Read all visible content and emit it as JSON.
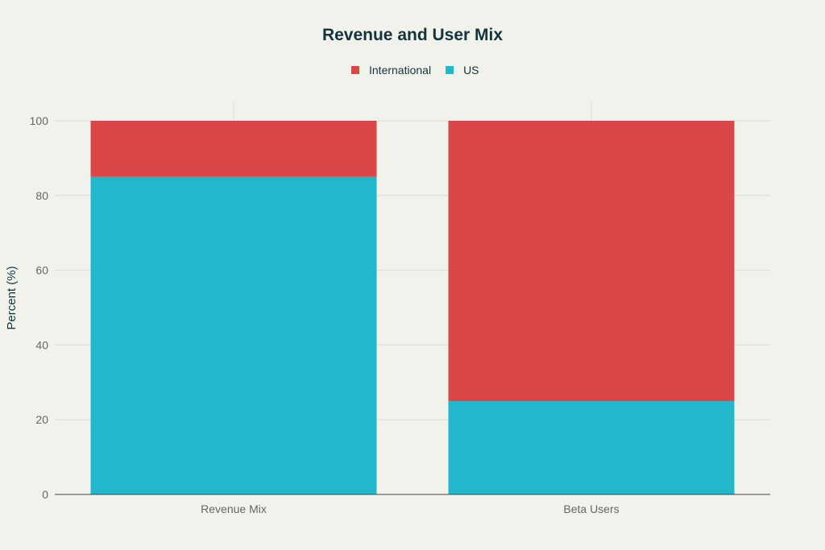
{
  "chart_data": {
    "type": "bar",
    "stacked": true,
    "title": "Revenue and User Mix",
    "xlabel": "",
    "ylabel": "Percent (%)",
    "categories": [
      "Revenue Mix",
      "Beta Users"
    ],
    "series": [
      {
        "name": "US",
        "values": [
          85,
          25
        ],
        "color": "#21b8cd"
      },
      {
        "name": "International",
        "values": [
          15,
          75
        ],
        "color": "#db4646"
      }
    ],
    "legend_order": [
      "International",
      "US"
    ],
    "legend_placement": "top-center",
    "ylim": [
      0,
      100
    ],
    "yticks": [
      0,
      20,
      40,
      60,
      80,
      100
    ],
    "grid": true
  }
}
